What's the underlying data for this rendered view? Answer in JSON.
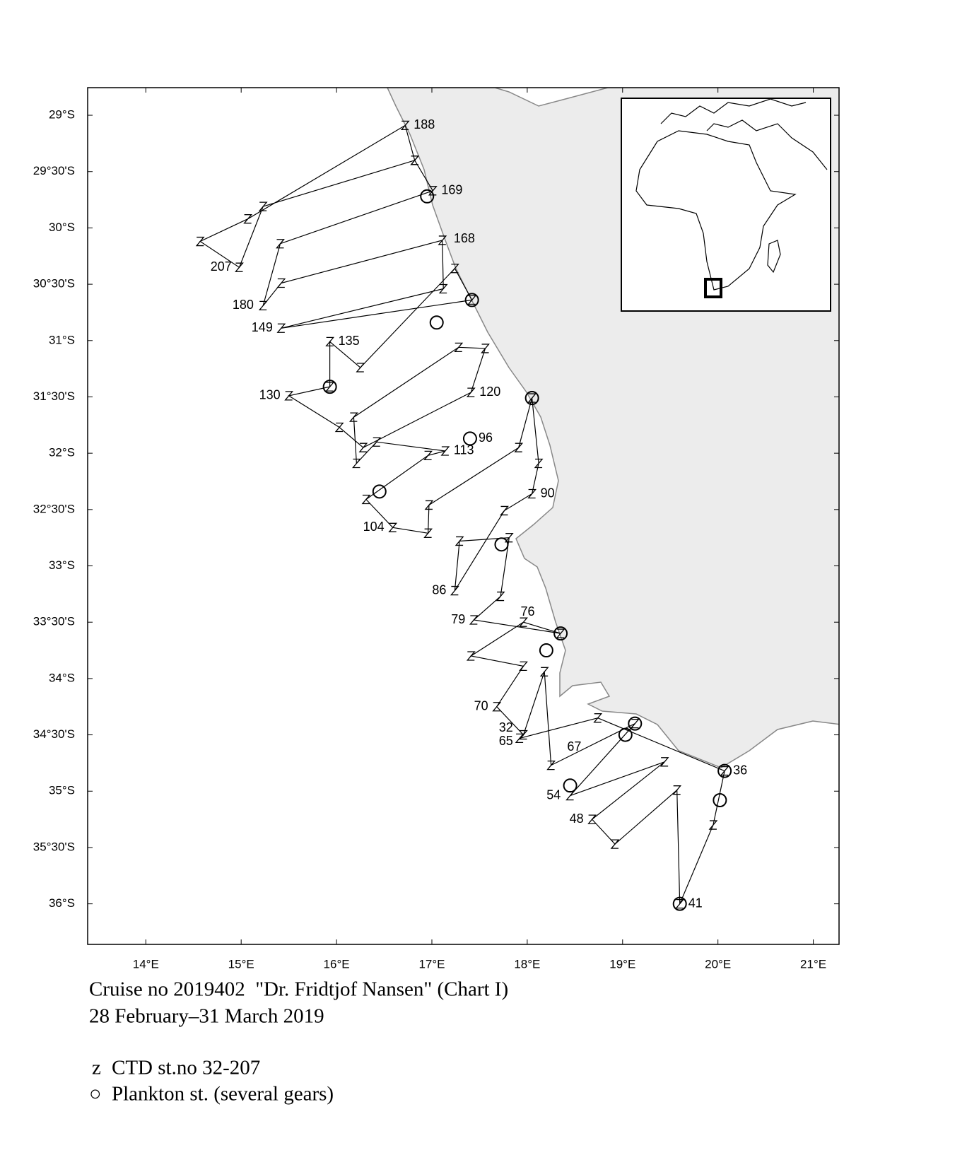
{
  "chart_data": {
    "type": "map",
    "xlim": [
      13.39,
      21.27
    ],
    "ylim": [
      -36.36,
      -28.755
    ],
    "xticks": [
      {
        "value": 14,
        "label": "14°E"
      },
      {
        "value": 15,
        "label": "15°E"
      },
      {
        "value": 16,
        "label": "16°E"
      },
      {
        "value": 17,
        "label": "17°E"
      },
      {
        "value": 18,
        "label": "18°E"
      },
      {
        "value": 19,
        "label": "19°E"
      },
      {
        "value": 20,
        "label": "20°E"
      },
      {
        "value": 21,
        "label": "21°E"
      }
    ],
    "yticks": [
      {
        "value": -29,
        "label": "29°S"
      },
      {
        "value": -29.5,
        "label": "29°30'S"
      },
      {
        "value": -30,
        "label": "30°S"
      },
      {
        "value": -30.5,
        "label": "30°30'S"
      },
      {
        "value": -31,
        "label": "31°S"
      },
      {
        "value": -31.5,
        "label": "31°30'S"
      },
      {
        "value": -32,
        "label": "32°S"
      },
      {
        "value": -32.5,
        "label": "32°30'S"
      },
      {
        "value": -33,
        "label": "33°S"
      },
      {
        "value": -33.5,
        "label": "33°30'S"
      },
      {
        "value": -34,
        "label": "34°S"
      },
      {
        "value": -34.5,
        "label": "34°30'S"
      },
      {
        "value": -35,
        "label": "35°S"
      },
      {
        "value": -35.5,
        "label": "35°30'S"
      },
      {
        "value": -36,
        "label": "36°S"
      }
    ],
    "track": {
      "lon": [
        17.92,
        18.74,
        20.07,
        19.95,
        19.6,
        19.57,
        18.92,
        18.68,
        19.44,
        18.45,
        19.13,
        18.25,
        18.18,
        17.96,
        17.68,
        17.96,
        17.41,
        17.96,
        18.35,
        17.44,
        17.72,
        17.81,
        17.29,
        17.24,
        17.76,
        18.05,
        18.12,
        18.05,
        17.91,
        16.97,
        16.96,
        16.59,
        16.31,
        16.96,
        17.14,
        16.42,
        16.21,
        16.18,
        17.28,
        17.56,
        17.41,
        16.28,
        16.03,
        15.5,
        15.93,
        15.93,
        16.25,
        17.24,
        17.42,
        15.42,
        17.12,
        17.11,
        15.42,
        15.23,
        15.41,
        17.01,
        16.82,
        15.23,
        14.98,
        14.57,
        15.07,
        16.72,
        16.82
      ],
      "lat": [
        -34.53,
        -34.35,
        -34.82,
        -35.3,
        -36.0,
        -34.99,
        -35.47,
        -35.25,
        -34.74,
        -35.04,
        -34.4,
        -34.77,
        -33.94,
        -34.5,
        -34.25,
        -33.89,
        -33.8,
        -33.5,
        -33.6,
        -33.48,
        -33.27,
        -32.75,
        -32.78,
        -33.22,
        -32.51,
        -32.36,
        -32.09,
        -31.51,
        -31.95,
        -32.46,
        -32.71,
        -32.66,
        -32.41,
        -32.02,
        -31.98,
        -31.9,
        -32.09,
        -31.68,
        -31.06,
        -31.07,
        -31.46,
        -31.95,
        -31.77,
        -31.49,
        -31.41,
        -31.01,
        -31.24,
        -30.36,
        -30.64,
        -30.89,
        -30.54,
        -30.11,
        -30.49,
        -30.69,
        -30.14,
        -29.67,
        -29.4,
        -29.81,
        -30.35,
        -30.12,
        -29.92,
        -29.09,
        -29.4
      ]
    },
    "stations": {
      "labels": [
        "188",
        "169",
        "168",
        "207",
        "180",
        "149",
        "135",
        "130",
        "120",
        "96",
        "113",
        "90",
        "104",
        "86",
        "79",
        "76",
        "70",
        "32",
        "65",
        "67",
        "36",
        "54",
        "48",
        "41"
      ],
      "lon": [
        16.72,
        17.01,
        17.14,
        14.99,
        15.22,
        15.42,
        15.93,
        15.5,
        17.41,
        17.4,
        17.14,
        18.05,
        16.59,
        17.24,
        17.44,
        17.96,
        17.68,
        17.94,
        17.94,
        18.33,
        20.07,
        18.44,
        18.68,
        19.6
      ],
      "lat": [
        -29.09,
        -29.67,
        -30.1,
        -30.35,
        -30.69,
        -30.89,
        -31.01,
        -31.49,
        -31.46,
        -31.87,
        -31.98,
        -32.36,
        -32.66,
        -33.22,
        -33.48,
        -33.5,
        -34.25,
        -34.44,
        -34.56,
        -34.61,
        -34.82,
        -35.04,
        -35.25,
        -36.0
      ]
    },
    "plankton": {
      "lon": [
        16.95,
        17.42,
        17.05,
        15.93,
        18.05,
        17.4,
        16.45,
        17.73,
        18.35,
        18.2,
        19.13,
        19.03,
        20.07,
        20.02,
        18.45,
        19.6
      ],
      "lat": [
        -29.72,
        -30.64,
        -30.84,
        -31.41,
        -31.51,
        -31.87,
        -32.34,
        -32.81,
        -33.6,
        -33.75,
        -34.4,
        -34.5,
        -34.82,
        -35.08,
        -34.95,
        -36.0
      ]
    }
  },
  "caption": [
    "Cruise no 2019402  \"Dr. Fridtjof Nansen\" (Chart I)",
    "28 February–31 March 2019"
  ],
  "legend": [
    {
      "symbol": "z",
      "label": "CTD st.no 32-207"
    },
    {
      "symbol": "○",
      "label": "Plankton st. (several gears)"
    }
  ]
}
